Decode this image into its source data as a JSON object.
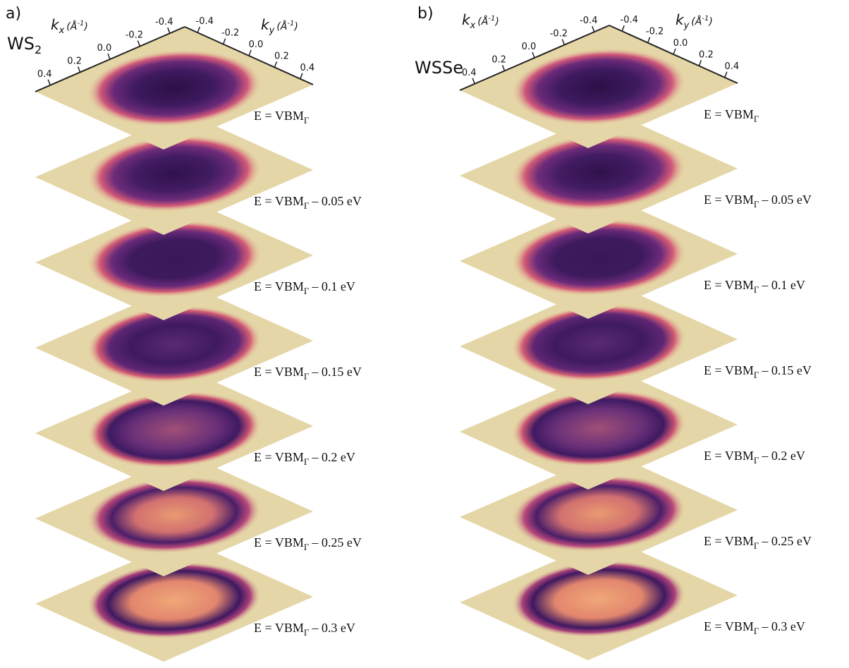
{
  "panels": [
    {
      "letter": "a)",
      "material": {
        "text": "WS",
        "sub": "2"
      },
      "kx": {
        "symbol": "k",
        "sub": "x",
        "unit": "(Å",
        "exp": "-1",
        "close": ")"
      },
      "ky": {
        "symbol": "k",
        "sub": "y",
        "unit": "(Å",
        "exp": "-1",
        "close": ")"
      },
      "kx_ticks": [
        "0.4",
        "0.2",
        "0.0",
        "-0.2",
        "-0.4"
      ],
      "ky_ticks": [
        "-0.4",
        "-0.2",
        "0.0",
        "0.2",
        "0.4"
      ],
      "slices": [
        {
          "text": "E = VBM",
          "sub": "Γ"
        },
        {
          "text": "E = VBM",
          "sub": "Γ",
          "suffix": "– 0.05 eV"
        },
        {
          "text": "E = VBM",
          "sub": "Γ",
          "suffix": "– 0.1 eV"
        },
        {
          "text": "E = VBM",
          "sub": "Γ",
          "suffix": "– 0.15 eV"
        },
        {
          "text": "E = VBM",
          "sub": "Γ",
          "suffix": "– 0.2 eV"
        },
        {
          "text": "E = VBM",
          "sub": "Γ",
          "suffix": "– 0.25 eV"
        },
        {
          "text": "E = VBM",
          "sub": "Γ",
          "suffix": "– 0.3 eV"
        }
      ]
    },
    {
      "letter": "b)",
      "material": {
        "text": "WSSe"
      },
      "kx": {
        "symbol": "k",
        "sub": "x",
        "unit": "(Å",
        "exp": "-1",
        "close": ")"
      },
      "ky": {
        "symbol": "k",
        "sub": "y",
        "unit": "(Å",
        "exp": "-1",
        "close": ")"
      },
      "kx_ticks": [
        "0.4",
        "0.2",
        "0.0",
        "-0.2",
        "-0.4"
      ],
      "ky_ticks": [
        "-0.4",
        "-0.2",
        "0.0",
        "0.2",
        "0.4"
      ],
      "slices": [
        {
          "text": "E = VBM",
          "sub": "Γ"
        },
        {
          "text": "E = VBM",
          "sub": "Γ",
          "suffix": "– 0.05 eV"
        },
        {
          "text": "E = VBM",
          "sub": "Γ",
          "suffix": "– 0.1 eV"
        },
        {
          "text": "E = VBM",
          "sub": "Γ",
          "suffix": "– 0.15 eV"
        },
        {
          "text": "E = VBM",
          "sub": "Γ",
          "suffix": "– 0.2 eV"
        },
        {
          "text": "E = VBM",
          "sub": "Γ",
          "suffix": "– 0.25 eV"
        },
        {
          "text": "E = VBM",
          "sub": "Γ",
          "suffix": "– 0.3 eV"
        }
      ]
    }
  ]
}
